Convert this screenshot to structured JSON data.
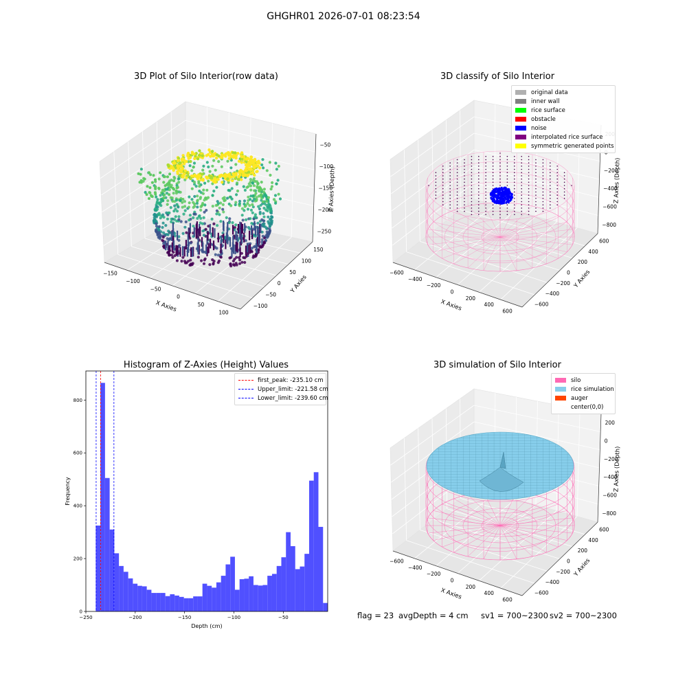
{
  "figure": {
    "suptitle": "GHGHR01 2026-07-01 08:23:54"
  },
  "panels": {
    "raw": {
      "title": "3D Plot of Silo Interior(row data)",
      "xlabel": "X Axies",
      "ylabel": "Y Axies",
      "zlabel": "Z Axies (Depth)",
      "xticks": [
        "−150",
        "−100",
        "−50",
        "0",
        "50",
        "100"
      ],
      "yticks": [
        "−100",
        "−50",
        "0",
        "50",
        "100",
        "150"
      ],
      "zticks": [
        "−50",
        "−100",
        "−150",
        "−200",
        "−250"
      ]
    },
    "classify": {
      "title": "3D classify of Silo Interior",
      "xlabel": "X Axies",
      "ylabel": "Y Axies",
      "zlabel": "Z Axies (Depth)",
      "xticks": [
        "−600",
        "−400",
        "−200",
        "0",
        "200",
        "400",
        "600"
      ],
      "yticks": [
        "−600",
        "−400",
        "−200",
        "0",
        "200",
        "400",
        "600"
      ],
      "zticks": [
        "200",
        "0",
        "−200",
        "−400",
        "−600",
        "−800"
      ],
      "legend": [
        {
          "label": "original data",
          "color": "#b0b0b0"
        },
        {
          "label": "inner wall",
          "color": "#808080"
        },
        {
          "label": "rice surface",
          "color": "#00ff00"
        },
        {
          "label": "obstacle",
          "color": "#ff0000"
        },
        {
          "label": "noise",
          "color": "#0000ff"
        },
        {
          "label": "interpolated rice surface",
          "color": "#800080"
        },
        {
          "label": "symmetric generated points",
          "color": "#ffff00"
        }
      ]
    },
    "simulation": {
      "title": "3D simulation of Silo Interior",
      "xlabel": "X Axies",
      "ylabel": "Y Axies",
      "zlabel": "Z Axies (Depth)",
      "xticks": [
        "−600",
        "−400",
        "−200",
        "0",
        "200",
        "400",
        "600"
      ],
      "yticks": [
        "−600",
        "−400",
        "−200",
        "0",
        "200",
        "400",
        "600"
      ],
      "zticks": [
        "200",
        "0",
        "−200",
        "−400",
        "−600",
        "−800"
      ],
      "legend": [
        {
          "label": "silo",
          "color": "#ff69b4"
        },
        {
          "label": "rice simulation",
          "color": "#87ceeb"
        },
        {
          "label": "auger",
          "color": "#ff4500"
        },
        {
          "label": "center(0,0)",
          "color": ""
        }
      ]
    }
  },
  "status": {
    "flag": "flag = 23",
    "avg_depth": "avgDepth = 4 cm",
    "sv1": "sv1 = 700~2300",
    "sv2": "sv2 = 700~2300"
  },
  "chart_data": {
    "type": "bar",
    "title": "Histogram of Z-Axies (Height) Values",
    "xlabel": "Depth (cm)",
    "ylabel": "Frequency",
    "bar_color": "#4a4aff",
    "xlim": [
      -250,
      -5
    ],
    "ylim": [
      0,
      910
    ],
    "xticks": [
      -250,
      -200,
      -150,
      -100,
      -50
    ],
    "yticks": [
      0,
      200,
      400,
      600,
      800
    ],
    "bin_start": -240,
    "bin_width": 4.7,
    "values": [
      325,
      865,
      505,
      310,
      220,
      172,
      150,
      125,
      105,
      97,
      95,
      82,
      70,
      70,
      70,
      58,
      65,
      60,
      55,
      50,
      50,
      57,
      57,
      105,
      97,
      90,
      110,
      135,
      178,
      207,
      82,
      122,
      124,
      133,
      100,
      98,
      100,
      135,
      142,
      172,
      205,
      300,
      247,
      160,
      170,
      218,
      495,
      527,
      320,
      32
    ],
    "vlines": [
      {
        "label": "first_peak: -235.10 cm",
        "x": -235.1,
        "color": "#ff0000"
      },
      {
        "label": "Upper_limit: -221.58 cm",
        "x": -221.58,
        "color": "#0000ff"
      },
      {
        "label": "Lower_limit: -239.60 cm",
        "x": -239.6,
        "color": "#0000ff"
      }
    ],
    "grid": false,
    "legend": "top-right"
  }
}
